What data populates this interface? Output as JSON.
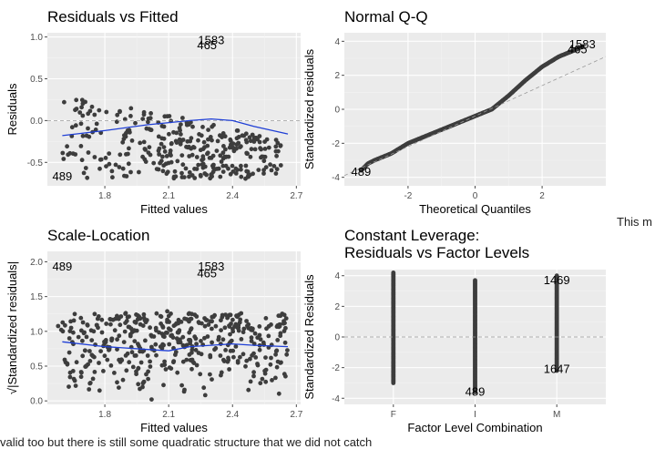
{
  "side_text": "This m",
  "bottom_text": "valid too but there is still some quadratic structure that we did not catch",
  "chart_data": [
    {
      "id": "residuals-vs-fitted",
      "type": "scatter",
      "title": "Residuals vs Fitted",
      "xlabel": "Fitted values",
      "ylabel": "Residuals",
      "xlim": [
        1.53,
        2.72
      ],
      "ylim": [
        -0.78,
        1.05
      ],
      "xticks": [
        1.8,
        2.1,
        2.4,
        2.7
      ],
      "yticks": [
        -0.5,
        0.0,
        0.5,
        1.0
      ],
      "grid": true,
      "reference_line": {
        "type": "hline",
        "y": 0,
        "style": "dashed"
      },
      "smooth": {
        "x": [
          1.6,
          1.8,
          2.0,
          2.2,
          2.3,
          2.4,
          2.5,
          2.66
        ],
        "y": [
          -0.18,
          -0.12,
          -0.05,
          0.0,
          0.02,
          0.0,
          -0.07,
          -0.16
        ]
      },
      "labeled_points": [
        {
          "label": "489",
          "x": 1.6,
          "y": -0.67
        },
        {
          "label": "465",
          "x": 2.28,
          "y": 0.9
        },
        {
          "label": "1583",
          "x": 2.3,
          "y": 0.96
        }
      ]
    },
    {
      "id": "normal-qq",
      "type": "scatter",
      "title": "Normal Q-Q",
      "xlabel": "Theoretical Quantiles",
      "ylabel": "Standardized residuals",
      "xlim": [
        -3.9,
        3.9
      ],
      "ylim": [
        -4.5,
        4.5
      ],
      "xticks": [
        -2,
        0,
        2
      ],
      "yticks": [
        -4,
        -2,
        0,
        2,
        4
      ],
      "grid": true,
      "reference_line": {
        "type": "qq-line",
        "x": [
          -3.9,
          3.9
        ],
        "y": [
          -3.9,
          3.1
        ],
        "style": "dashed"
      },
      "curve": {
        "x": [
          -3.4,
          -3.2,
          -3.0,
          -2.5,
          -2.0,
          -1.5,
          -1.0,
          -0.5,
          0.0,
          0.5,
          1.0,
          1.5,
          2.0,
          2.5,
          3.0,
          3.2
        ],
        "y": [
          -3.6,
          -3.2,
          -3.0,
          -2.6,
          -2.0,
          -1.6,
          -1.2,
          -0.8,
          -0.4,
          0.0,
          0.8,
          1.7,
          2.5,
          3.1,
          3.5,
          3.7
        ]
      },
      "labeled_points": [
        {
          "label": "489",
          "x": -3.4,
          "y": -3.7
        },
        {
          "label": "465",
          "x": 3.05,
          "y": 3.5
        },
        {
          "label": "1583",
          "x": 3.2,
          "y": 3.8
        }
      ]
    },
    {
      "id": "scale-location",
      "type": "scatter",
      "title": "Scale-Location",
      "xlabel": "Fitted values",
      "ylabel": "√|Standardized residuals|",
      "xlim": [
        1.53,
        2.72
      ],
      "ylim": [
        -0.05,
        2.15
      ],
      "xticks": [
        1.8,
        2.1,
        2.4,
        2.7
      ],
      "yticks": [
        0.0,
        0.5,
        1.0,
        1.5,
        2.0
      ],
      "grid": true,
      "smooth": {
        "x": [
          1.6,
          1.8,
          2.0,
          2.1,
          2.2,
          2.4,
          2.5,
          2.66
        ],
        "y": [
          0.85,
          0.78,
          0.74,
          0.72,
          0.78,
          0.82,
          0.8,
          0.78
        ]
      },
      "labeled_points": [
        {
          "label": "489",
          "x": 1.6,
          "y": 1.93
        },
        {
          "label": "465",
          "x": 2.28,
          "y": 1.83
        },
        {
          "label": "1583",
          "x": 2.3,
          "y": 1.93
        }
      ]
    },
    {
      "id": "constant-leverage",
      "type": "scatter",
      "title": "Constant Leverage:",
      "subtitle": "Residuals vs Factor Levels",
      "xlabel": "Factor Level Combination",
      "ylabel": "Standardized Residuals",
      "categories": [
        "F",
        "I",
        "M"
      ],
      "ylim": [
        -4.4,
        4.4
      ],
      "yticks": [
        -4,
        -2,
        0,
        2,
        4
      ],
      "grid": true,
      "reference_line": {
        "type": "hline",
        "y": 0,
        "style": "dashed"
      },
      "ranges": [
        {
          "category": "F",
          "min": -3.0,
          "max": 4.2
        },
        {
          "category": "I",
          "min": -3.6,
          "max": 3.7
        },
        {
          "category": "M",
          "min": -2.2,
          "max": 4.0
        }
      ],
      "labeled_points": [
        {
          "label": "489",
          "category": "I",
          "y": -3.6
        },
        {
          "label": "1469",
          "category": "M",
          "y": 3.7
        },
        {
          "label": "1647",
          "category": "M",
          "y": -2.1
        }
      ]
    }
  ]
}
